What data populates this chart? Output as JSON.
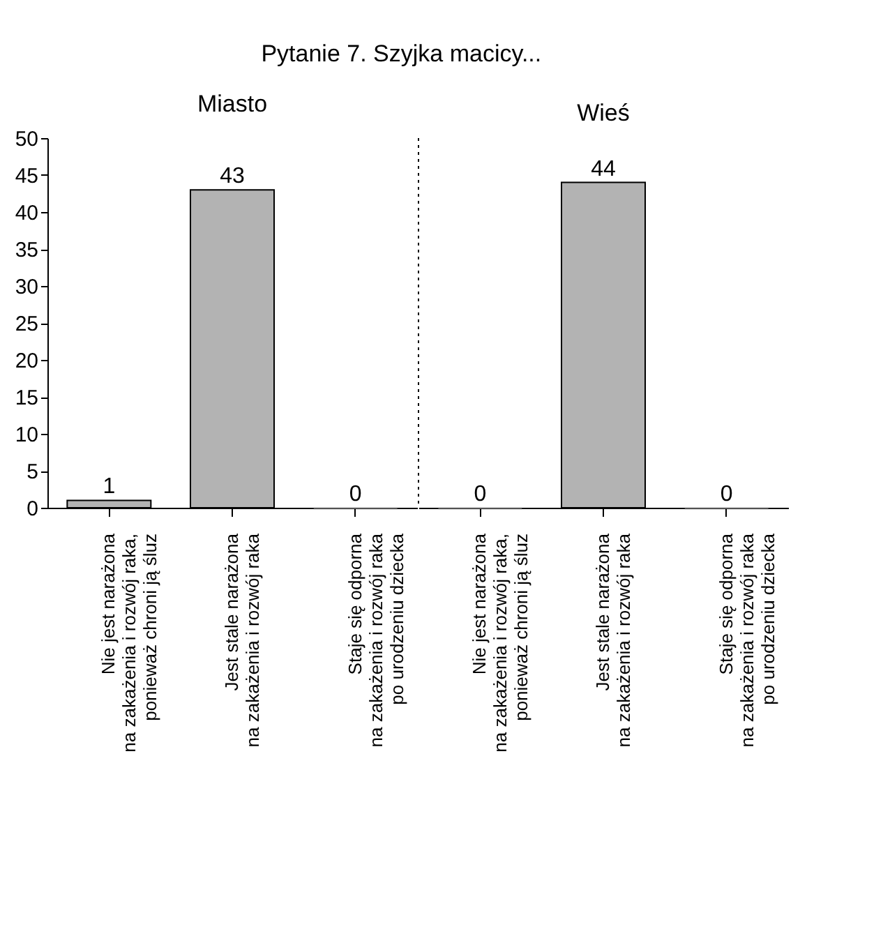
{
  "chart_data": [
    {
      "type": "bar",
      "title": "Miasto",
      "annotations": [
        "Pytanie 7. Szyjka macicy..."
      ],
      "categories": [
        "Nie jest narażona\nna zakażenia i rozwój raka,\nponieważ chroni ją śluz",
        "Jest stale narażona\nna zakażenia i rozwój raka",
        "Staje się odporna\nna zakażenia i rozwój raka\npo urodzeniu dziecka"
      ],
      "values": [
        1,
        43,
        0
      ],
      "color": "#b3b3b3",
      "ylim": [
        0,
        50
      ],
      "yticks": [
        0,
        5,
        10,
        15,
        20,
        25,
        30,
        35,
        40,
        45,
        50
      ],
      "data_labels": true,
      "grid": false
    },
    {
      "type": "bar",
      "title": "Wieś",
      "categories": [
        "Nie jest narażona\nna zakażenia i rozwój raka,\nponieważ chroni ją śluz",
        "Jest stale narażona\nna zakażenia i rozwój raka",
        "Staje się odporna\nna zakażenia i rozwój raka\npo urodzeniu dziecka"
      ],
      "values": [
        0,
        44,
        0
      ],
      "color": "#b3b3b3",
      "ylim": [
        0,
        50
      ],
      "data_labels": true,
      "tick_labels": "x"
    }
  ]
}
